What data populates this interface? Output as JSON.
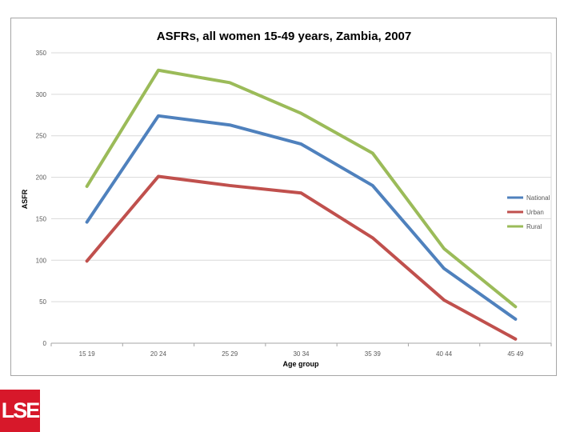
{
  "chart_data": {
    "type": "line",
    "title": "ASFRs, all women 15-49 years, Zambia, 2007",
    "xlabel": "Age group",
    "ylabel": "ASFR",
    "ylim": [
      0,
      350
    ],
    "yticks": [
      0,
      50,
      100,
      150,
      200,
      250,
      300,
      350
    ],
    "categories": [
      "15 19",
      "20 24",
      "25 29",
      "30 34",
      "35 39",
      "40 44",
      "45 49"
    ],
    "grid": true,
    "legend_position": "right",
    "series": [
      {
        "name": "National",
        "color": "#4f81bd",
        "values": [
          146,
          274,
          263,
          240,
          190,
          90,
          29
        ]
      },
      {
        "name": "Urban",
        "color": "#c0504d",
        "values": [
          99,
          201,
          190,
          181,
          127,
          52,
          5
        ]
      },
      {
        "name": "Rural",
        "color": "#9bbb59",
        "values": [
          189,
          329,
          314,
          277,
          229,
          114,
          44
        ]
      }
    ]
  },
  "logo": {
    "text": "LSE",
    "color": "#d7182a"
  }
}
